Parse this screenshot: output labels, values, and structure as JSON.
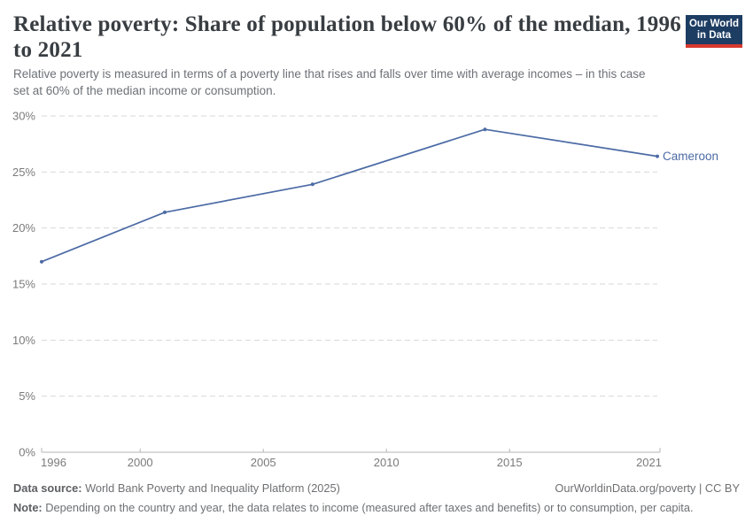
{
  "header": {
    "title_lines": [
      "Relative poverty: Share of population below 60% of the median, 1996",
      "to 2021"
    ],
    "subtitle_lines": [
      "Relative poverty is measured in terms of a poverty line that rises and falls over time with average incomes – in this case",
      "set at 60% of the median income or consumption."
    ],
    "logo": {
      "lines": [
        "Our World",
        "in Data"
      ],
      "bg": "#1d3d63",
      "accent": "#d7382e"
    }
  },
  "chart_data": {
    "type": "line",
    "title": "Relative poverty: Share of population below 60% of the median, 1996 to 2021",
    "x": [
      1996,
      2001,
      2007,
      2014,
      2021
    ],
    "series": [
      {
        "name": "Cameroon",
        "color": "#4c6ba5",
        "values": [
          17.0,
          21.4,
          23.9,
          28.8,
          26.4
        ]
      }
    ],
    "xlim": [
      1996,
      2021
    ],
    "ylim": [
      0,
      30
    ],
    "yticks": [
      0,
      5,
      10,
      15,
      20,
      25,
      30
    ],
    "ytick_suffix": "%",
    "xticks": [
      1996,
      2000,
      2005,
      2010,
      2015,
      2021
    ],
    "grid": "horizontal-dashed",
    "legend_position": "end-of-line-label",
    "grid_color": "#d7d7d7",
    "axis_color": "#b5b5b5"
  },
  "footer": {
    "datasource_label": "Data source:",
    "datasource_text": " World Bank Poverty and Inequality Platform (2025)",
    "attribution": "OurWorldinData.org/poverty | CC BY",
    "note_label": "Note:",
    "note_text": " Depending on the country and year, the data relates to income (measured after taxes and benefits) or to consumption, per capita."
  }
}
